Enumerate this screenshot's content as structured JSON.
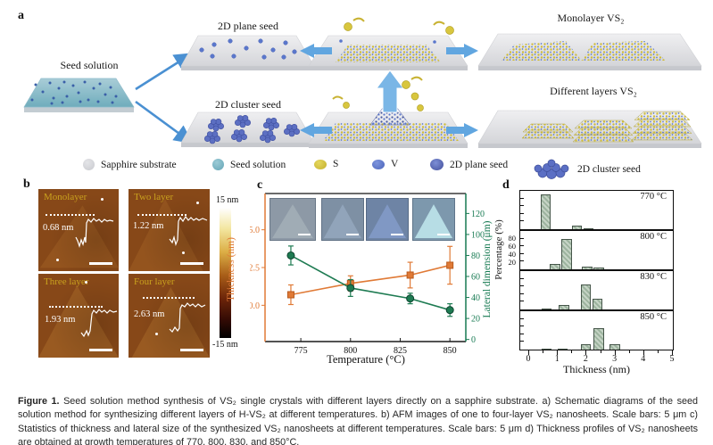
{
  "panel_a": {
    "label": "a",
    "seed_solution": "Seed solution",
    "plane_seed": "2D plane seed",
    "cluster_seed": "2D cluster seed",
    "monolayer": "Monolayer VS₂",
    "different_layers": "Different layers VS₂",
    "legend": [
      {
        "name": "Sapphire substrate",
        "color": "#d6d7da"
      },
      {
        "name": "Seed solution",
        "color": "#74afbe"
      },
      {
        "name": "S",
        "color": "#d3c13b"
      },
      {
        "name": "V",
        "color": "#5a74c8"
      },
      {
        "name": "2D plane seed",
        "color": "#4d5fa9"
      },
      {
        "name": "2D cluster seed",
        "color": "#5b6fc4"
      }
    ]
  },
  "panel_b": {
    "label": "b",
    "images": [
      {
        "title": "Monolayer",
        "thickness": "0.68 nm"
      },
      {
        "title": "Two layer",
        "thickness": "1.22 nm"
      },
      {
        "title": "Three layer",
        "thickness": "1.93 nm"
      },
      {
        "title": "Four layer",
        "thickness": "2.63 nm"
      }
    ],
    "colorbar": {
      "top": "15 nm",
      "bottom": "-15 nm"
    }
  },
  "panel_c": {
    "label": "c"
  },
  "panel_d": {
    "label": "d"
  },
  "chart_data": [
    {
      "type": "line",
      "xlabel": "Temperature (°C)",
      "x_ticks": [
        775,
        800,
        825,
        850
      ],
      "x_range": [
        757,
        858
      ],
      "left_axis": {
        "label": "Thickness (nm)",
        "ticks": [
          0.0,
          2.5,
          5.0
        ],
        "range": [
          -2.4,
          7.4
        ],
        "color": "#e07a36"
      },
      "right_axis": {
        "label": "Lateral dimension (μm)",
        "ticks": [
          0,
          20,
          40,
          60,
          80,
          100,
          120
        ],
        "range": [
          -2,
          139
        ],
        "color": "#177a52"
      },
      "series": [
        {
          "name": "Thickness",
          "axis": "left",
          "color": "#e07a36",
          "edge": "#b85a1d",
          "marker": "square",
          "x": [
            770,
            800,
            830,
            850
          ],
          "y": [
            0.7,
            1.45,
            2.0,
            2.65
          ],
          "yerr": [
            0.65,
            0.5,
            0.85,
            1.25
          ]
        },
        {
          "name": "Lateral dimension",
          "axis": "right",
          "color": "#1e7b52",
          "edge": "#0e4530",
          "marker": "circle",
          "x": [
            770,
            800,
            830,
            850
          ],
          "y": [
            80,
            49,
            39,
            28
          ],
          "yerr": [
            9,
            8,
            5,
            6
          ]
        }
      ]
    },
    {
      "type": "bar",
      "xlabel": "Thickness (nm)",
      "ylabel": "Percentage (%)",
      "x_ticks": [
        0,
        1,
        2,
        3,
        4,
        5
      ],
      "x_range": [
        -0.25,
        5.0
      ],
      "y_range": [
        0,
        100
      ],
      "y_tick_labels": [
        20,
        40,
        60,
        80
      ],
      "bin_width": 0.35,
      "bar_color": "#aec3ae",
      "bar_edge": "#46564a",
      "panels": [
        {
          "label": "770 °C",
          "bars": [
            {
              "x": 0.62,
              "h": 90
            },
            {
              "x": 1.7,
              "h": 10
            },
            {
              "x": 2.1,
              "h": 2
            }
          ]
        },
        {
          "label": "800 °C",
          "bars": [
            {
              "x": 0.95,
              "h": 13
            },
            {
              "x": 1.35,
              "h": 80
            },
            {
              "x": 2.05,
              "h": 8
            },
            {
              "x": 2.45,
              "h": 5
            }
          ]
        },
        {
          "label": "830 °C",
          "bars": [
            {
              "x": 0.65,
              "h": 2
            },
            {
              "x": 1.25,
              "h": 12
            },
            {
              "x": 2.0,
              "h": 65
            },
            {
              "x": 2.4,
              "h": 28
            }
          ]
        },
        {
          "label": "850 °C",
          "bars": [
            {
              "x": 0.65,
              "h": 2
            },
            {
              "x": 1.2,
              "h": 3
            },
            {
              "x": 2.0,
              "h": 15
            },
            {
              "x": 2.45,
              "h": 55
            },
            {
              "x": 3.0,
              "h": 15
            }
          ]
        }
      ]
    }
  ],
  "caption": {
    "label": "Figure 1.",
    "text": " Seed solution method synthesis of VS₂ single crystals with different layers directly on a sapphire substrate. a) Schematic diagrams of the seed solution method for synthesizing different layers of H-VS₂ at different temperatures. b) AFM images of one to four-layer VS₂ nanosheets. Scale bars: 5 μm c) Statistics of thickness and lateral size of the synthesized VS₂ nanosheets at different temperatures. Scale bars: 5 μm d) Thickness profiles of VS₂ nanosheets are obtained at growth temperatures of 770, 800, 830, and 850°C."
  }
}
